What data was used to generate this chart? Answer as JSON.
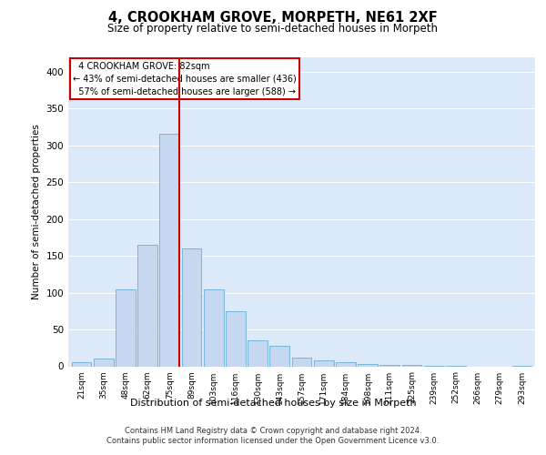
{
  "title": "4, CROOKHAM GROVE, MORPETH, NE61 2XF",
  "subtitle": "Size of property relative to semi-detached houses in Morpeth",
  "xlabel": "Distribution of semi-detached houses by size in Morpeth",
  "ylabel": "Number of semi-detached properties",
  "footer_line1": "Contains HM Land Registry data © Crown copyright and database right 2024.",
  "footer_line2": "Contains public sector information licensed under the Open Government Licence v3.0.",
  "categories": [
    "21sqm",
    "35sqm",
    "48sqm",
    "62sqm",
    "75sqm",
    "89sqm",
    "103sqm",
    "116sqm",
    "130sqm",
    "143sqm",
    "157sqm",
    "171sqm",
    "184sqm",
    "198sqm",
    "211sqm",
    "225sqm",
    "239sqm",
    "252sqm",
    "266sqm",
    "279sqm",
    "293sqm"
  ],
  "values": [
    5,
    10,
    105,
    165,
    315,
    160,
    105,
    75,
    35,
    28,
    12,
    8,
    5,
    3,
    2,
    2,
    1,
    1,
    0,
    0,
    1
  ],
  "bar_color": "#c5d8f0",
  "bar_edge_color": "#6baed6",
  "red_line_index": 4,
  "red_line_label": "4 CROOKHAM GROVE: 82sqm",
  "pct_smaller": 43,
  "n_smaller": 436,
  "pct_larger": 57,
  "n_larger": 588,
  "ylim": [
    0,
    420
  ],
  "yticks": [
    0,
    50,
    100,
    150,
    200,
    250,
    300,
    350,
    400
  ],
  "plot_bg_color": "#dce9f8",
  "grid_color": "#ffffff",
  "annotation_box_color": "#ffffff",
  "annotation_box_edge": "#cc0000"
}
